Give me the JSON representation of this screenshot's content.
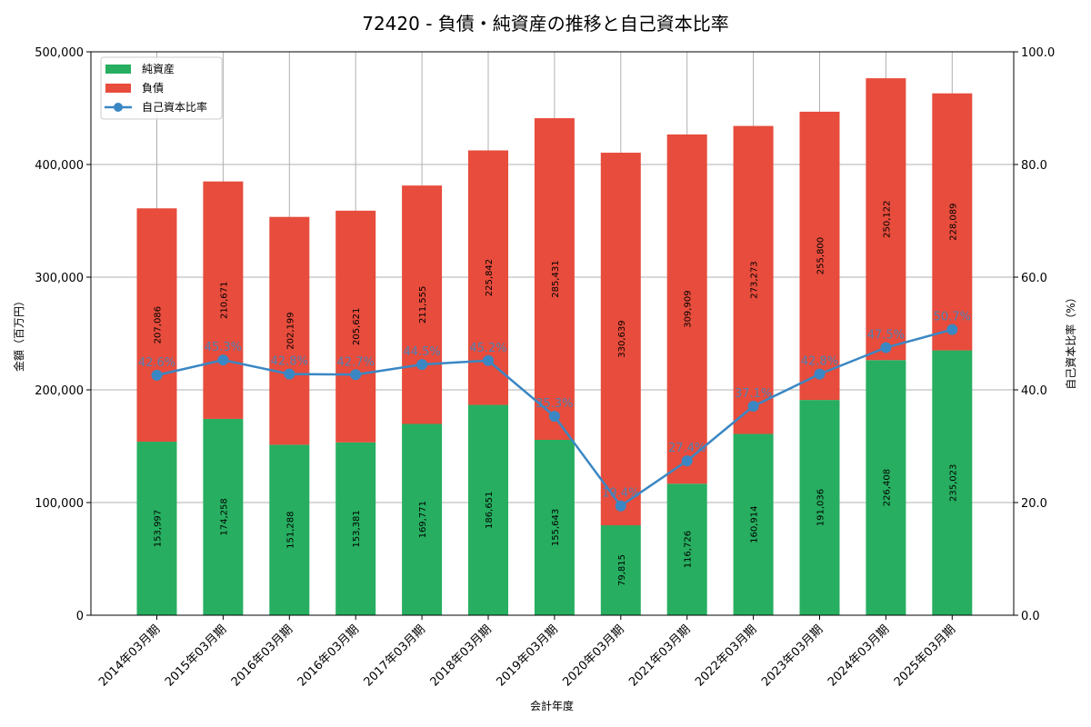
{
  "chart_data": {
    "type": "bar",
    "subtype": "stacked_bar_with_line_secondary_axis",
    "title": "72420 - 負債・純資産の推移と自己資本比率",
    "xlabel": "会計年度",
    "ylabel": "金額（百万円）",
    "y2label": "自己資本比率（%）",
    "ylim": [
      0,
      500000
    ],
    "y2lim": [
      0,
      100
    ],
    "yticks": [
      "0",
      "100,000",
      "200,000",
      "300,000",
      "400,000",
      "500,000"
    ],
    "y2ticks": [
      "0.0",
      "20.0",
      "40.0",
      "60.0",
      "80.0",
      "100.0"
    ],
    "grid": true,
    "legend_position": "upper left",
    "categories": [
      "2014年03月期",
      "2015年03月期",
      "2016年03月期",
      "2016年03月期",
      "2017年03月期",
      "2018年03月期",
      "2019年03月期",
      "2020年03月期",
      "2021年03月期",
      "2022年03月期",
      "2023年03月期",
      "2024年03月期",
      "2025年03月期"
    ],
    "series": [
      {
        "name": "純資産",
        "type": "bar",
        "color": "#27ae60",
        "values": [
          153997,
          174258,
          151288,
          153381,
          169771,
          186651,
          155643,
          79815,
          116726,
          160914,
          191036,
          226408,
          235023
        ],
        "labels": [
          "153,997",
          "174,258",
          "151,288",
          "153,381",
          "169,771",
          "186,651",
          "155,643",
          "79,815",
          "116,726",
          "160,914",
          "191,036",
          "226,408",
          "235,023"
        ]
      },
      {
        "name": "負債",
        "type": "bar",
        "color": "#e74c3c",
        "values": [
          207086,
          210671,
          202199,
          205621,
          211555,
          225842,
          285431,
          330639,
          309909,
          273273,
          255800,
          250122,
          228089
        ],
        "labels": [
          "207,086",
          "210,671",
          "202,199",
          "205,621",
          "211,555",
          "225,842",
          "285,431",
          "330,639",
          "309,909",
          "273,273",
          "255,800",
          "250,122",
          "228,089"
        ]
      },
      {
        "name": "自己資本比率",
        "type": "line",
        "axis": "right",
        "color": "#3a87c4",
        "values": [
          42.6,
          45.3,
          42.8,
          42.7,
          44.5,
          45.2,
          35.3,
          19.4,
          27.4,
          37.1,
          42.8,
          47.5,
          50.7
        ],
        "labels": [
          "42.6%",
          "45.3%",
          "42.8%",
          "42.7%",
          "44.5%",
          "45.2%",
          "35.3%",
          "19.4%",
          "27.4%",
          "37.1%",
          "42.8%",
          "47.5%",
          "50.7%"
        ]
      }
    ]
  }
}
